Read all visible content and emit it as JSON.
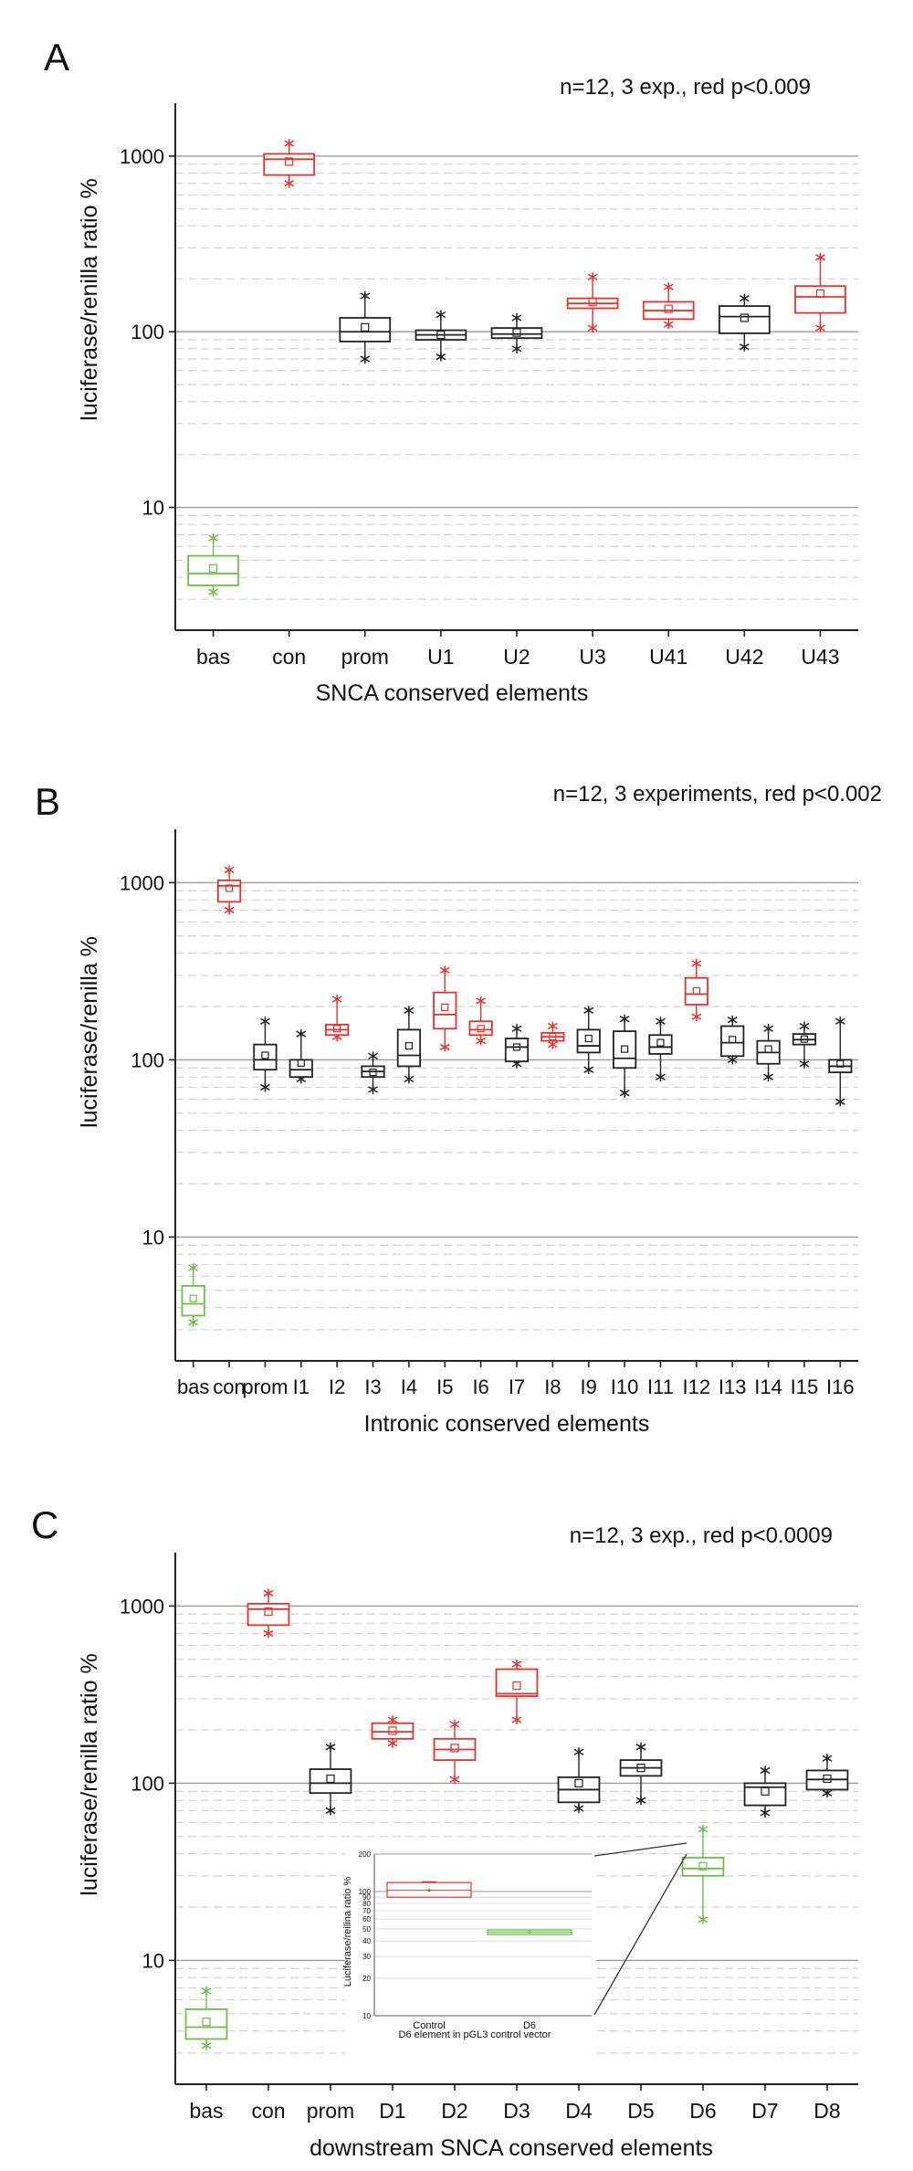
{
  "colors": {
    "black": "#222222",
    "red": "#e8322c",
    "green": "#6cc04a",
    "grid_major": "#9a9a9a",
    "grid_minor": "#d4d4d4"
  },
  "chart_data": [
    {
      "panel": "A",
      "type": "box",
      "annotation": "n=12, 3 exp., red p<0.009",
      "xlabel": "SNCA conserved elements",
      "ylabel": "luciferase/renilla ratio %",
      "yscale": "log",
      "ylim": [
        2,
        2000
      ],
      "yticks": [
        10,
        100,
        1000
      ],
      "grid": true,
      "categories": [
        "bas",
        "con",
        "prom",
        "U1",
        "U2",
        "U3",
        "U41",
        "U42",
        "U43"
      ],
      "boxes": [
        {
          "label": "bas",
          "color": "green",
          "q1": 3.6,
          "median": 4.2,
          "q3": 5.3,
          "mean": 4.5,
          "min": 3.3,
          "max": 6.7
        },
        {
          "label": "con",
          "color": "red",
          "q1": 780,
          "median": 960,
          "q3": 1030,
          "mean": 930,
          "min": 700,
          "max": 1180
        },
        {
          "label": "prom",
          "color": "black",
          "q1": 88,
          "median": 100,
          "q3": 120,
          "mean": 106,
          "min": 70,
          "max": 160
        },
        {
          "label": "U1",
          "color": "black",
          "q1": 90,
          "median": 96,
          "q3": 102,
          "mean": 96,
          "min": 72,
          "max": 125
        },
        {
          "label": "U2",
          "color": "black",
          "q1": 92,
          "median": 97,
          "q3": 105,
          "mean": 99,
          "min": 80,
          "max": 120
        },
        {
          "label": "U3",
          "color": "red",
          "q1": 136,
          "median": 145,
          "q3": 155,
          "mean": 148,
          "min": 105,
          "max": 205
        },
        {
          "label": "U41",
          "color": "red",
          "q1": 118,
          "median": 132,
          "q3": 148,
          "mean": 135,
          "min": 110,
          "max": 180
        },
        {
          "label": "U42",
          "color": "black",
          "q1": 98,
          "median": 122,
          "q3": 140,
          "mean": 120,
          "min": 82,
          "max": 155
        },
        {
          "label": "U43",
          "color": "red",
          "q1": 128,
          "median": 158,
          "q3": 182,
          "mean": 165,
          "min": 105,
          "max": 265
        }
      ]
    },
    {
      "panel": "B",
      "type": "box",
      "annotation": "n=12, 3 experiments, red p<0.002",
      "xlabel": "Intronic conserved elements",
      "ylabel": "luciferase/renilla %",
      "yscale": "log",
      "ylim": [
        2,
        2000
      ],
      "yticks": [
        10,
        100,
        1000
      ],
      "grid": true,
      "categories": [
        "bas",
        "con",
        "prom",
        "I1",
        "I2",
        "I3",
        "I4",
        "I5",
        "I6",
        "I7",
        "I8",
        "I9",
        "I10",
        "I11",
        "I12",
        "I13",
        "I14",
        "I15",
        "I16"
      ],
      "boxes": [
        {
          "label": "bas",
          "color": "green",
          "q1": 3.6,
          "median": 4.2,
          "q3": 5.3,
          "mean": 4.5,
          "min": 3.3,
          "max": 6.7
        },
        {
          "label": "con",
          "color": "red",
          "q1": 780,
          "median": 960,
          "q3": 1030,
          "mean": 930,
          "min": 700,
          "max": 1180
        },
        {
          "label": "prom",
          "color": "black",
          "q1": 88,
          "median": 100,
          "q3": 122,
          "mean": 106,
          "min": 70,
          "max": 165
        },
        {
          "label": "I1",
          "color": "black",
          "q1": 80,
          "median": 88,
          "q3": 100,
          "mean": 96,
          "min": 78,
          "max": 140
        },
        {
          "label": "I2",
          "color": "red",
          "q1": 138,
          "median": 148,
          "q3": 158,
          "mean": 150,
          "min": 135,
          "max": 220
        },
        {
          "label": "I3",
          "color": "black",
          "q1": 80,
          "median": 86,
          "q3": 92,
          "mean": 85,
          "min": 68,
          "max": 105
        },
        {
          "label": "I4",
          "color": "black",
          "q1": 92,
          "median": 106,
          "q3": 148,
          "mean": 120,
          "min": 78,
          "max": 190
        },
        {
          "label": "I5",
          "color": "red",
          "q1": 150,
          "median": 180,
          "q3": 240,
          "mean": 198,
          "min": 118,
          "max": 320
        },
        {
          "label": "I6",
          "color": "red",
          "q1": 138,
          "median": 148,
          "q3": 165,
          "mean": 150,
          "min": 128,
          "max": 215
        },
        {
          "label": "I7",
          "color": "black",
          "q1": 98,
          "median": 118,
          "q3": 132,
          "mean": 118,
          "min": 95,
          "max": 150
        },
        {
          "label": "I8",
          "color": "red",
          "q1": 128,
          "median": 135,
          "q3": 142,
          "mean": 135,
          "min": 122,
          "max": 155
        },
        {
          "label": "I9",
          "color": "black",
          "q1": 110,
          "median": 120,
          "q3": 148,
          "mean": 132,
          "min": 88,
          "max": 190
        },
        {
          "label": "I10",
          "color": "black",
          "q1": 90,
          "median": 102,
          "q3": 145,
          "mean": 115,
          "min": 65,
          "max": 170
        },
        {
          "label": "I11",
          "color": "black",
          "q1": 108,
          "median": 118,
          "q3": 138,
          "mean": 125,
          "min": 80,
          "max": 165
        },
        {
          "label": "I12",
          "color": "red",
          "q1": 205,
          "median": 235,
          "q3": 290,
          "mean": 245,
          "min": 175,
          "max": 350
        },
        {
          "label": "I13",
          "color": "black",
          "q1": 105,
          "median": 125,
          "q3": 155,
          "mean": 130,
          "min": 100,
          "max": 168
        },
        {
          "label": "I14",
          "color": "black",
          "q1": 95,
          "median": 110,
          "q3": 128,
          "mean": 115,
          "min": 80,
          "max": 150
        },
        {
          "label": "I15",
          "color": "black",
          "q1": 122,
          "median": 130,
          "q3": 140,
          "mean": 131,
          "min": 95,
          "max": 155
        },
        {
          "label": "I16",
          "color": "black",
          "q1": 85,
          "median": 92,
          "q3": 100,
          "mean": 95,
          "min": 58,
          "max": 165
        }
      ]
    },
    {
      "panel": "C",
      "type": "box",
      "annotation": "n=12, 3 exp., red p<0.0009",
      "xlabel": "downstream SNCA conserved elements",
      "ylabel": "luciferase/renilla ratio %",
      "yscale": "log",
      "ylim": [
        2,
        2000
      ],
      "yticks": [
        10,
        100,
        1000
      ],
      "grid": true,
      "categories": [
        "bas",
        "con",
        "prom",
        "D1",
        "D2",
        "D3",
        "D4",
        "D5",
        "D6",
        "D7",
        "D8"
      ],
      "boxes": [
        {
          "label": "bas",
          "color": "green",
          "q1": 3.6,
          "median": 4.2,
          "q3": 5.3,
          "mean": 4.5,
          "min": 3.3,
          "max": 6.7
        },
        {
          "label": "con",
          "color": "red",
          "q1": 780,
          "median": 960,
          "q3": 1030,
          "mean": 930,
          "min": 700,
          "max": 1180
        },
        {
          "label": "prom",
          "color": "black",
          "q1": 88,
          "median": 100,
          "q3": 120,
          "mean": 106,
          "min": 70,
          "max": 160
        },
        {
          "label": "D1",
          "color": "red",
          "q1": 178,
          "median": 195,
          "q3": 218,
          "mean": 198,
          "min": 168,
          "max": 228
        },
        {
          "label": "D2",
          "color": "red",
          "q1": 135,
          "median": 155,
          "q3": 178,
          "mean": 158,
          "min": 105,
          "max": 215
        },
        {
          "label": "D3",
          "color": "red",
          "q1": 310,
          "median": 320,
          "q3": 440,
          "mean": 355,
          "min": 228,
          "max": 470
        },
        {
          "label": "D4",
          "color": "black",
          "q1": 78,
          "median": 92,
          "q3": 108,
          "mean": 100,
          "min": 72,
          "max": 150
        },
        {
          "label": "D5",
          "color": "black",
          "q1": 110,
          "median": 122,
          "q3": 135,
          "mean": 122,
          "min": 80,
          "max": 160
        },
        {
          "label": "D6",
          "color": "green",
          "q1": 30,
          "median": 33,
          "q3": 38,
          "mean": 34,
          "min": 17,
          "max": 55
        },
        {
          "label": "D7",
          "color": "black",
          "q1": 75,
          "median": 95,
          "q3": 100,
          "mean": 90,
          "min": 68,
          "max": 118
        },
        {
          "label": "D8",
          "color": "black",
          "q1": 92,
          "median": 105,
          "q3": 118,
          "mean": 106,
          "min": 88,
          "max": 138
        }
      ],
      "inset": {
        "type": "box",
        "xlabel": "D6 element in pGL3 control vector",
        "ylabel": "Luciferase/reilina ratio %",
        "yscale": "log",
        "ylim": [
          10,
          200
        ],
        "yticks": [
          10,
          20,
          30,
          40,
          50,
          60,
          70,
          80,
          90,
          100,
          200
        ],
        "categories": [
          "Control",
          "D6"
        ],
        "boxes": [
          {
            "label": "Control",
            "color": "red",
            "q1": 90,
            "median": 102,
            "q3": 118,
            "mean": 102,
            "min": 90,
            "max": 120
          },
          {
            "label": "D6",
            "color": "green",
            "q1": 45,
            "median": 47,
            "q3": 49,
            "mean": 47,
            "min": 45,
            "max": 49
          }
        ]
      }
    }
  ]
}
